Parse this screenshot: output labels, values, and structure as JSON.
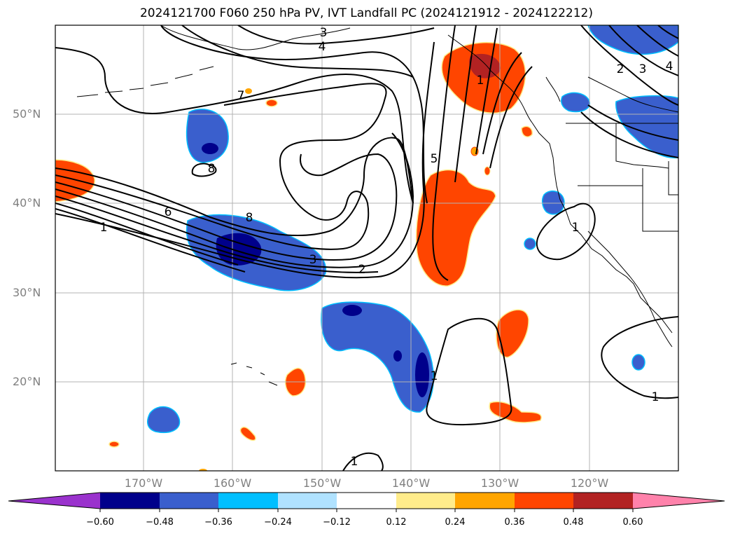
{
  "title": "2024121700 F060 250 hPa PV, IVT Landfall PC (2024121912 - 2024122212)",
  "map": {
    "lat_labels": [
      "50°N",
      "40°N",
      "30°N",
      "20°N"
    ],
    "lon_labels": [
      "170°W",
      "160°W",
      "150°W",
      "140°W",
      "130°W",
      "120°W"
    ],
    "contour_labels": [
      "3",
      "4",
      "7",
      "8",
      "6",
      "1",
      "8",
      "3",
      "2",
      "5",
      "2",
      "3",
      "4",
      "1",
      "1",
      "1",
      "1",
      "1"
    ]
  },
  "colorbar": {
    "tick_labels": [
      "−0.60",
      "−0.48",
      "−0.36",
      "−0.24",
      "−0.12",
      "0.12",
      "0.24",
      "0.36",
      "0.48",
      "0.60"
    ],
    "colors": [
      "#9a32cd",
      "#00008b",
      "#3a5fcd",
      "#00bfff",
      "#b0e2ff",
      "#ffffff",
      "#ffec8b",
      "#ffa500",
      "#ff4500",
      "#b22222",
      "#ff82ab"
    ]
  }
}
